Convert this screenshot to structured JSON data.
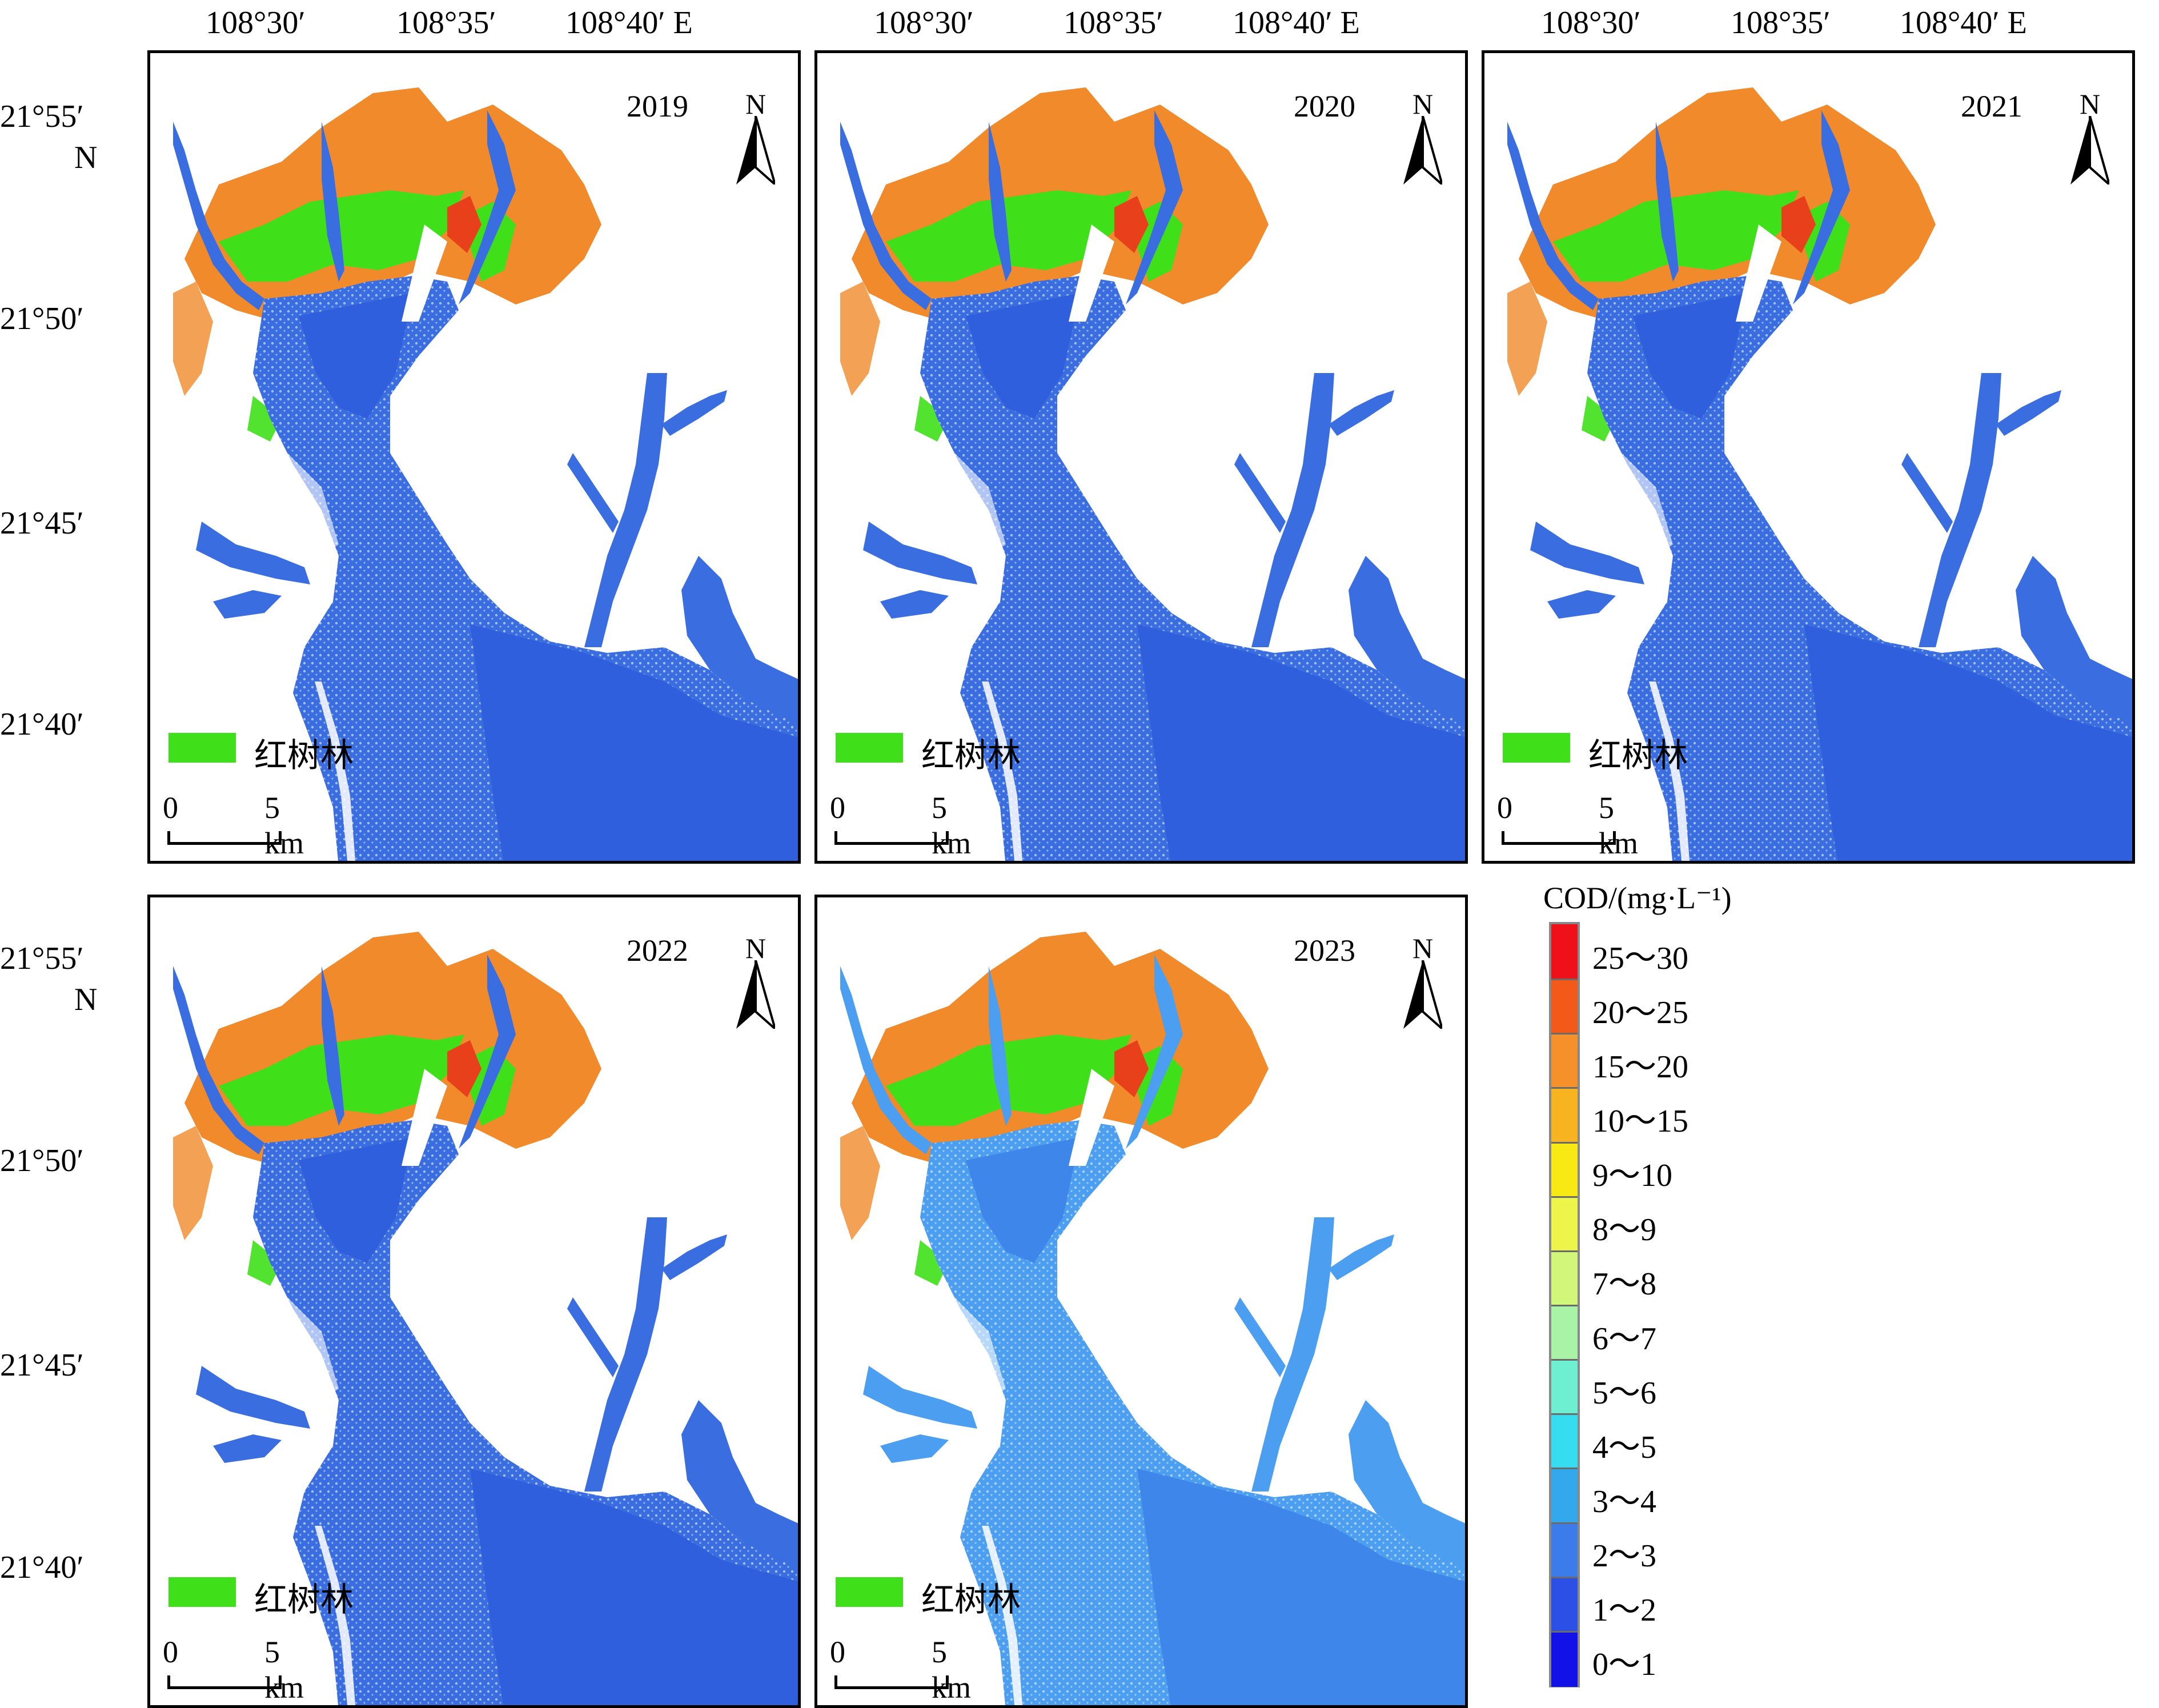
{
  "top_axis_labels": [
    "108°30′",
    "108°35′",
    "108°40′ E"
  ],
  "left_axis_labels_top": [
    "21°55′",
    "N",
    "21°50′",
    "21°45′",
    "21°40′"
  ],
  "left_axis_labels_bottom": [
    "21°55′",
    "N",
    "21°50′",
    "21°45′",
    "21°40′"
  ],
  "panels": [
    {
      "year": "2019"
    },
    {
      "year": "2020"
    },
    {
      "year": "2021"
    },
    {
      "year": "2022"
    },
    {
      "year": "2023"
    }
  ],
  "north_label": "N",
  "mangrove_label": "红树林",
  "scale_start": "0",
  "scale_end": "5 km",
  "colorbar": {
    "title": "COD/(mg·L⁻¹)",
    "classes": [
      {
        "label": "25～30",
        "color": "#f0101a"
      },
      {
        "label": "20～25",
        "color": "#f35a1a"
      },
      {
        "label": "15～20",
        "color": "#f5902a"
      },
      {
        "label": "10～15",
        "color": "#f7b320"
      },
      {
        "label": "9～10",
        "color": "#f8e814"
      },
      {
        "label": "8～9",
        "color": "#eef54a"
      },
      {
        "label": "7～8",
        "color": "#d2f67a"
      },
      {
        "label": "6～7",
        "color": "#a8f3a6"
      },
      {
        "label": "5～6",
        "color": "#6fefd2"
      },
      {
        "label": "4～5",
        "color": "#36dcf0"
      },
      {
        "label": "3～4",
        "color": "#34a8ec"
      },
      {
        "label": "2～3",
        "color": "#3b7cea"
      },
      {
        "label": "1～2",
        "color": "#2c4fe6"
      },
      {
        "label": "0～1",
        "color": "#1212e8"
      }
    ]
  },
  "colors": {
    "mangrove": "#3fe01a",
    "land_orange": "#f08a2a",
    "water_main": "#3a6ee0",
    "water_light": "#4c9ef0"
  }
}
